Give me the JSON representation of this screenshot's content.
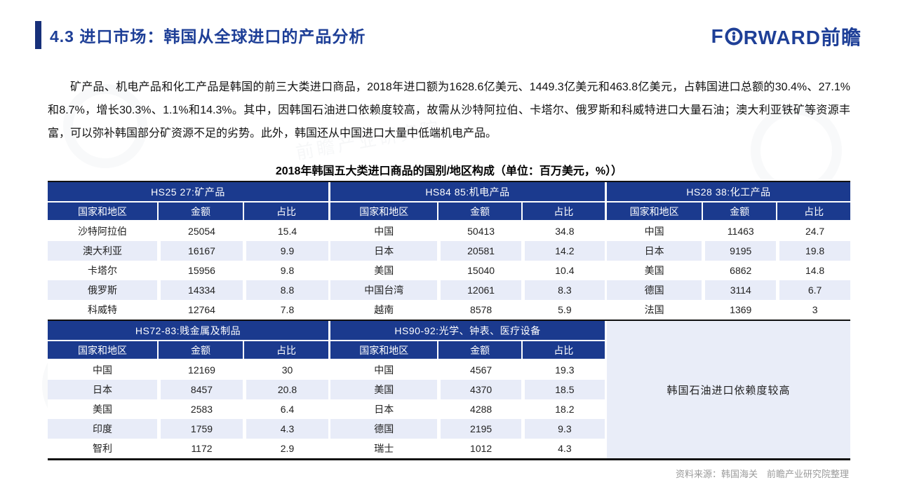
{
  "header": {
    "section_title": "4.3 进口市场：韩国从全球进口的产品分析",
    "logo_part1": "F",
    "logo_part2": "RWARD前瞻"
  },
  "intro": "矿产品、机电产品和化工产品是韩国的前三大类进口商品，2018年进口额为1628.6亿美元、1449.3亿美元和463.8亿美元，占韩国进口总额的30.4%、27.1%和8.7%，增长30.3%、1.1%和14.3%。其中，因韩国石油进口依赖度较高，故需从沙特阿拉伯、卡塔尔、俄罗斯和科威特进口大量石油；澳大利亚铁矿等资源丰富，可以弥补韩国部分矿资源不足的劣势。此外，韩国还从中国进口大量中低端机电产品。",
  "table_title": "2018年韩国五大类进口商品的国别/地区构成（单位：百万美元，%））",
  "column_headers": [
    "国家和地区",
    "金额",
    "占比"
  ],
  "tables": [
    {
      "group": "HS25 27:矿产品",
      "rows": [
        [
          "沙特阿拉伯",
          "25054",
          "15.4"
        ],
        [
          "澳大利亚",
          "16167",
          "9.9"
        ],
        [
          "卡塔尔",
          "15956",
          "9.8"
        ],
        [
          "俄罗斯",
          "14334",
          "8.8"
        ],
        [
          "科威特",
          "12764",
          "7.8"
        ]
      ]
    },
    {
      "group": "HS84 85:机电产品",
      "rows": [
        [
          "中国",
          "50413",
          "34.8"
        ],
        [
          "日本",
          "20581",
          "14.2"
        ],
        [
          "美国",
          "15040",
          "10.4"
        ],
        [
          "中国台湾",
          "12061",
          "8.3"
        ],
        [
          "越南",
          "8578",
          "5.9"
        ]
      ]
    },
    {
      "group": "HS28 38:化工产品",
      "rows": [
        [
          "中国",
          "11463",
          "24.7"
        ],
        [
          "日本",
          "9195",
          "19.8"
        ],
        [
          "美国",
          "6862",
          "14.8"
        ],
        [
          "德国",
          "3114",
          "6.7"
        ],
        [
          "法国",
          "1369",
          "3"
        ]
      ]
    },
    {
      "group": "HS72-83:贱金属及制品",
      "rows": [
        [
          "中国",
          "12169",
          "30"
        ],
        [
          "日本",
          "8457",
          "20.8"
        ],
        [
          "美国",
          "2583",
          "6.4"
        ],
        [
          "印度",
          "1759",
          "4.3"
        ],
        [
          "智利",
          "1172",
          "2.9"
        ]
      ]
    },
    {
      "group": "HS90-92:光学、钟表、医疗设备",
      "rows": [
        [
          "中国",
          "4567",
          "19.3"
        ],
        [
          "美国",
          "4370",
          "18.5"
        ],
        [
          "日本",
          "4288",
          "18.2"
        ],
        [
          "德国",
          "2195",
          "9.3"
        ],
        [
          "瑞士",
          "1012",
          "4.3"
        ]
      ]
    }
  ],
  "info_panel": "韩国石油进口依赖度较高",
  "footer": "资料来源：韩国海关　前瞻产业研究院整理",
  "watermark": "前瞻产业研究院",
  "colors": {
    "header_navy": "#1b3a8e",
    "title_blue": "#1e3f97",
    "row_alt": "#e8ecf8",
    "panel": "#e9edf8",
    "footer_gray": "#9a9a9a"
  }
}
